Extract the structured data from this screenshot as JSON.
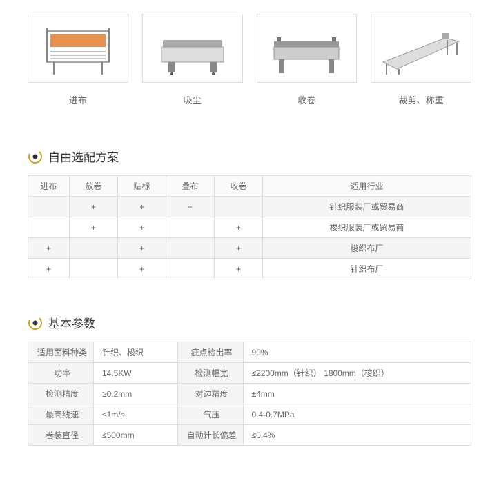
{
  "products": [
    {
      "label": "进布",
      "svg": "m1"
    },
    {
      "label": "吸尘",
      "svg": "m2"
    },
    {
      "label": "收卷",
      "svg": "m3"
    },
    {
      "label": "裁剪、称重",
      "svg": "m4"
    }
  ],
  "sections": {
    "config": {
      "title": "自由选配方案",
      "headers": [
        "进布",
        "放卷",
        "贴标",
        "叠布",
        "收卷",
        "适用行业"
      ],
      "rows": [
        [
          "",
          "+",
          "+",
          "+",
          "",
          "针织服装厂或贸易商"
        ],
        [
          "",
          "+",
          "+",
          "",
          "+",
          "梭织服装厂或贸易商"
        ],
        [
          "+",
          "",
          "+",
          "",
          "+",
          "梭织布厂"
        ],
        [
          "+",
          "",
          "+",
          "",
          "+",
          "针织布厂"
        ]
      ]
    },
    "specs": {
      "title": "基本参数",
      "rows": [
        [
          "适用面料种类",
          "针织、梭织",
          "疵点检出率",
          "90%"
        ],
        [
          "功率",
          "14.5KW",
          "检测幅宽",
          "≤2200mm（针织） 1800mm（梭织）"
        ],
        [
          "检测精度",
          "≥0.2mm",
          "对边精度",
          "±4mm"
        ],
        [
          "最高线速",
          "≤1m/s",
          "气压",
          "0.4-0.7MPa"
        ],
        [
          "卷装直径",
          "≤500mm",
          "自动计长偏差",
          "≤0.4%"
        ]
      ]
    }
  },
  "colors": {
    "icon_outer": "#d4a017",
    "icon_inner": "#333333",
    "border": "#dddddd"
  }
}
